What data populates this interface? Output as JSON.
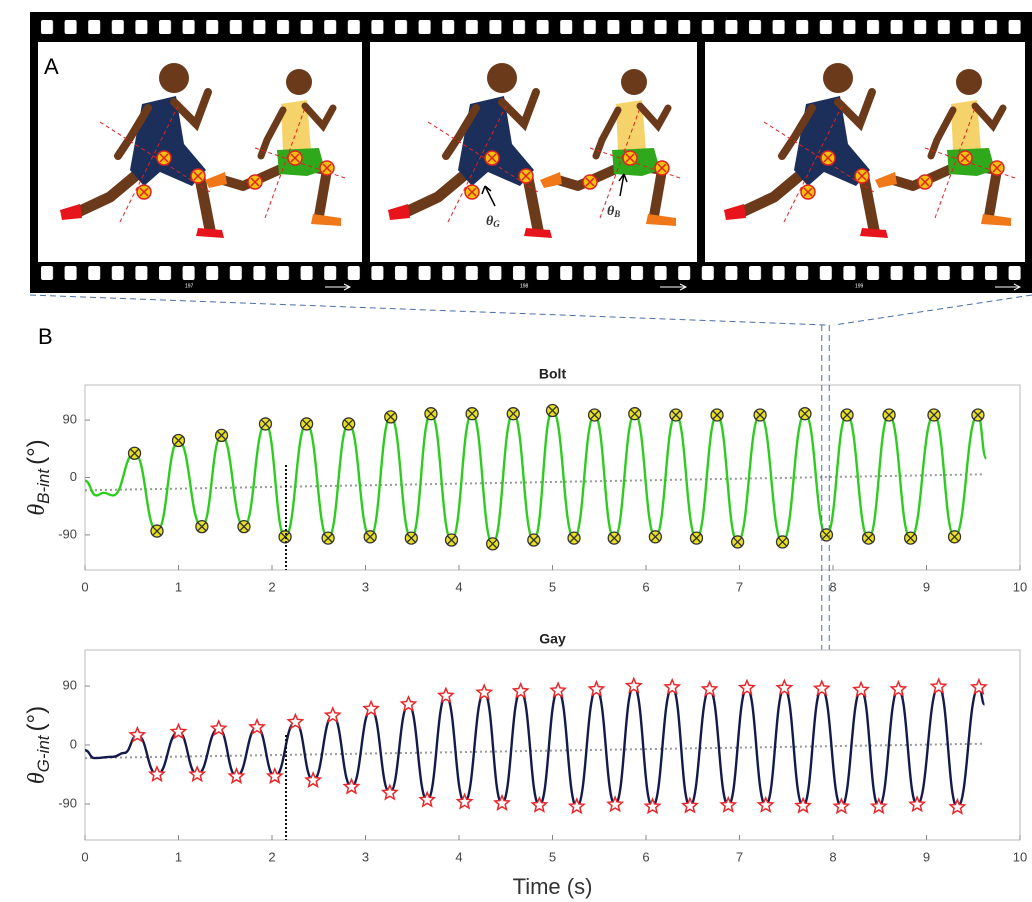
{
  "panel_a": {
    "label": "A",
    "frame_numbers": [
      "197",
      "198",
      "199"
    ],
    "angle_labels": [
      {
        "symbol": "θ",
        "sub": "G"
      },
      {
        "symbol": "θ",
        "sub": "B"
      }
    ]
  },
  "panel_b": {
    "label": "B"
  },
  "chart_data": [
    {
      "type": "line",
      "title": "Bolt",
      "ylabel": {
        "symbol": "θ",
        "sub": "B-int",
        "unit": "(°)"
      },
      "xlim": [
        0,
        10
      ],
      "ylim": [
        -145,
        145
      ],
      "xticks": [
        0,
        1,
        2,
        3,
        4,
        5,
        6,
        7,
        8,
        9,
        10
      ],
      "yticks": [
        -90,
        0,
        90
      ],
      "vline": 2.15,
      "highlight": [
        7.88,
        7.96
      ],
      "series": [
        {
          "color": "#999999",
          "style": "dotted",
          "x": [
            0,
            9.62
          ],
          "values": [
            -20,
            5
          ]
        },
        {
          "color": "#2ecc1f",
          "style": "solid",
          "x": [
            0,
            0.12,
            0.2,
            0.3,
            0.53,
            0.77,
            1.0,
            1.25,
            1.46,
            1.7,
            1.93,
            2.14,
            2.37,
            2.6,
            2.82,
            3.05,
            3.27,
            3.49,
            3.7,
            3.92,
            4.14,
            4.36,
            4.58,
            4.8,
            5.0,
            5.23,
            5.45,
            5.66,
            5.88,
            6.1,
            6.32,
            6.54,
            6.76,
            6.98,
            7.22,
            7.46,
            7.7,
            7.93,
            8.15,
            8.38,
            8.6,
            8.83,
            9.08,
            9.3,
            9.55,
            9.64
          ],
          "values": [
            -5,
            -28,
            -24,
            -28,
            38,
            -84,
            58,
            -77,
            66,
            -77,
            84,
            -93,
            84,
            -95,
            84,
            -93,
            95,
            -95,
            100,
            -98,
            100,
            -104,
            100,
            -98,
            105,
            -95,
            98,
            -95,
            100,
            -93,
            98,
            -95,
            98,
            -101,
            98,
            -101,
            100,
            -90,
            98,
            -95,
            98,
            -95,
            98,
            -93,
            98,
            30
          ]
        },
        {
          "color": "#e8e020",
          "marker": "x-circle",
          "x": [
            0.53,
            0.77,
            1.0,
            1.25,
            1.46,
            1.7,
            1.93,
            2.14,
            2.37,
            2.6,
            2.82,
            3.05,
            3.27,
            3.49,
            3.7,
            3.92,
            4.14,
            4.36,
            4.58,
            4.8,
            5.0,
            5.23,
            5.45,
            5.66,
            5.88,
            6.1,
            6.32,
            6.54,
            6.76,
            6.98,
            7.22,
            7.46,
            7.7,
            7.93,
            8.15,
            8.38,
            8.6,
            8.83,
            9.08,
            9.3,
            9.55
          ],
          "values": [
            38,
            -84,
            58,
            -77,
            66,
            -77,
            84,
            -93,
            84,
            -95,
            84,
            -93,
            95,
            -95,
            100,
            -98,
            100,
            -104,
            100,
            -98,
            105,
            -95,
            98,
            -95,
            100,
            -93,
            98,
            -95,
            98,
            -101,
            98,
            -101,
            100,
            -90,
            98,
            -95,
            98,
            -95,
            98,
            -93,
            98
          ]
        }
      ]
    },
    {
      "type": "line",
      "title": "Gay",
      "ylabel": {
        "symbol": "θ",
        "sub": "G-int",
        "unit": "(°)"
      },
      "xlabel": "Time (s)",
      "xlim": [
        0,
        10
      ],
      "ylim": [
        -145,
        145
      ],
      "xticks": [
        0,
        1,
        2,
        3,
        4,
        5,
        6,
        7,
        8,
        9,
        10
      ],
      "yticks": [
        -90,
        0,
        90
      ],
      "vline": 2.15,
      "series": [
        {
          "color": "#999999",
          "style": "dotted",
          "x": [
            0,
            9.62
          ],
          "values": [
            -20,
            2
          ]
        },
        {
          "color": "#141a4a",
          "style": "solid",
          "x": [
            0,
            0.1,
            0.3,
            0.42,
            0.56,
            0.77,
            1.0,
            1.2,
            1.43,
            1.62,
            1.84,
            2.03,
            2.25,
            2.44,
            2.65,
            2.85,
            3.06,
            3.26,
            3.46,
            3.66,
            3.86,
            4.06,
            4.27,
            4.46,
            4.66,
            4.86,
            5.06,
            5.26,
            5.47,
            5.67,
            5.87,
            6.07,
            6.28,
            6.47,
            6.68,
            6.88,
            7.08,
            7.28,
            7.48,
            7.68,
            7.88,
            8.09,
            8.3,
            8.49,
            8.7,
            8.9,
            9.13,
            9.33,
            9.56,
            9.62
          ],
          "values": [
            -8,
            -20,
            -18,
            -12,
            15,
            -45,
            20,
            -45,
            25,
            -48,
            27,
            -48,
            35,
            -54,
            45,
            -64,
            55,
            -73,
            62,
            -84,
            75,
            -87,
            80,
            -89,
            82,
            -92,
            83,
            -94,
            85,
            -91,
            90,
            -94,
            88,
            -93,
            85,
            -92,
            87,
            -92,
            87,
            -93,
            86,
            -94,
            84,
            -94,
            85,
            -91,
            89,
            -95,
            88,
            62
          ]
        },
        {
          "color": "#e8282c",
          "marker": "star",
          "x": [
            0.56,
            0.77,
            1.0,
            1.2,
            1.43,
            1.62,
            1.84,
            2.03,
            2.25,
            2.44,
            2.65,
            2.85,
            3.06,
            3.26,
            3.46,
            3.66,
            3.86,
            4.06,
            4.27,
            4.46,
            4.66,
            4.86,
            5.06,
            5.26,
            5.47,
            5.67,
            5.87,
            6.07,
            6.28,
            6.47,
            6.68,
            6.88,
            7.08,
            7.28,
            7.48,
            7.68,
            7.88,
            8.09,
            8.3,
            8.49,
            8.7,
            8.9,
            9.13,
            9.33,
            9.56
          ],
          "values": [
            15,
            -45,
            20,
            -45,
            25,
            -48,
            27,
            -48,
            35,
            -54,
            45,
            -64,
            55,
            -73,
            62,
            -84,
            75,
            -87,
            80,
            -89,
            82,
            -92,
            83,
            -94,
            85,
            -91,
            90,
            -94,
            88,
            -93,
            85,
            -92,
            87,
            -92,
            87,
            -93,
            86,
            -94,
            84,
            -94,
            85,
            -91,
            89,
            -95,
            88
          ]
        }
      ]
    }
  ]
}
